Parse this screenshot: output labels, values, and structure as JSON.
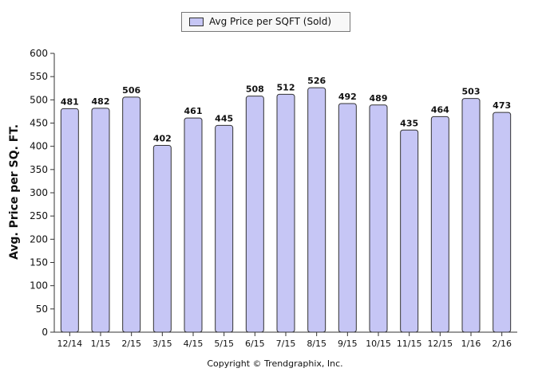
{
  "chart_data": {
    "type": "bar",
    "categories": [
      "12/14",
      "1/15",
      "2/15",
      "3/15",
      "4/15",
      "5/15",
      "6/15",
      "7/15",
      "8/15",
      "9/15",
      "10/15",
      "11/15",
      "12/15",
      "1/16",
      "2/16"
    ],
    "series": [
      {
        "name": "Avg Price per SQFT (Sold)",
        "values": [
          481,
          482,
          506,
          402,
          461,
          445,
          508,
          512,
          526,
          492,
          489,
          435,
          464,
          503,
          473
        ]
      }
    ],
    "ylabel": "Avg. Price per SQ. FT.",
    "xlabel": "",
    "ylim": [
      0,
      600
    ],
    "yticks": [
      0,
      50,
      100,
      150,
      200,
      250,
      300,
      350,
      400,
      450,
      500,
      550,
      600
    ],
    "grid": false,
    "legend": "top-center",
    "bar_color": "#c6c6f5",
    "bar_edge_color": "#333333"
  },
  "footer": {
    "copyright": "Copyright © Trendgraphix, Inc."
  }
}
